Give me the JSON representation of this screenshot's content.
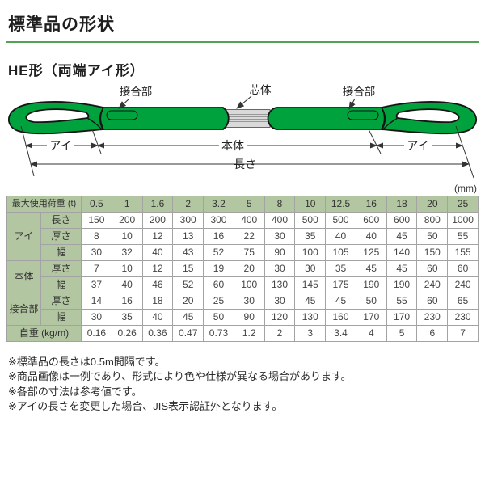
{
  "page": {
    "title": "標準品の形状",
    "subtitle": "HE形（両端アイ形）",
    "unit_label": "(mm)"
  },
  "colors": {
    "belt_green": "#00a23e",
    "core_gray": "#d9d9d9",
    "header_green": "#b3c6a2",
    "accent_green": "#4fa352",
    "border_gray": "#a3a3a3",
    "text_dark": "#222222"
  },
  "diagram": {
    "labels": {
      "joint_left": "接合部",
      "core": "芯体",
      "joint_right": "接合部",
      "eye_left": "アイ",
      "body": "本体",
      "eye_right": "アイ",
      "length": "長さ"
    }
  },
  "table": {
    "header_label": "最大使用荷重 (t)",
    "loads": [
      "0.5",
      "1",
      "1.6",
      "2",
      "3.2",
      "5",
      "8",
      "10",
      "12.5",
      "16",
      "18",
      "20",
      "25"
    ],
    "groups": [
      {
        "name": "アイ",
        "rows": [
          {
            "label": "長さ",
            "values": [
              "150",
              "200",
              "200",
              "300",
              "300",
              "400",
              "400",
              "500",
              "500",
              "600",
              "600",
              "800",
              "1000"
            ]
          },
          {
            "label": "厚さ",
            "values": [
              "8",
              "10",
              "12",
              "13",
              "16",
              "22",
              "30",
              "35",
              "40",
              "40",
              "45",
              "50",
              "55"
            ]
          },
          {
            "label": "幅",
            "values": [
              "30",
              "32",
              "40",
              "43",
              "52",
              "75",
              "90",
              "100",
              "105",
              "125",
              "140",
              "150",
              "155"
            ]
          }
        ]
      },
      {
        "name": "本体",
        "rows": [
          {
            "label": "厚さ",
            "values": [
              "7",
              "10",
              "12",
              "15",
              "19",
              "20",
              "30",
              "30",
              "35",
              "45",
              "45",
              "60",
              "60"
            ]
          },
          {
            "label": "幅",
            "values": [
              "37",
              "40",
              "46",
              "52",
              "60",
              "100",
              "130",
              "145",
              "175",
              "190",
              "190",
              "240",
              "240"
            ]
          }
        ]
      },
      {
        "name": "接合部",
        "rows": [
          {
            "label": "厚さ",
            "values": [
              "14",
              "16",
              "18",
              "20",
              "25",
              "30",
              "30",
              "45",
              "45",
              "50",
              "55",
              "60",
              "65"
            ]
          },
          {
            "label": "幅",
            "values": [
              "30",
              "35",
              "40",
              "45",
              "50",
              "90",
              "120",
              "130",
              "160",
              "170",
              "170",
              "230",
              "230"
            ]
          }
        ]
      }
    ],
    "weight_row": {
      "label": "自重 (kg/m)",
      "values": [
        "0.16",
        "0.26",
        "0.36",
        "0.47",
        "0.73",
        "1.2",
        "2",
        "3",
        "3.4",
        "4",
        "5",
        "6",
        "7"
      ]
    }
  },
  "notes": [
    "※標準品の長さは0.5m間隔です。",
    "※商品画像は一例であり、形式により色や仕様が異なる場合があります。",
    "※各部の寸法は参考値です。",
    "※アイの長さを変更した場合、JIS表示認証外となります。"
  ]
}
